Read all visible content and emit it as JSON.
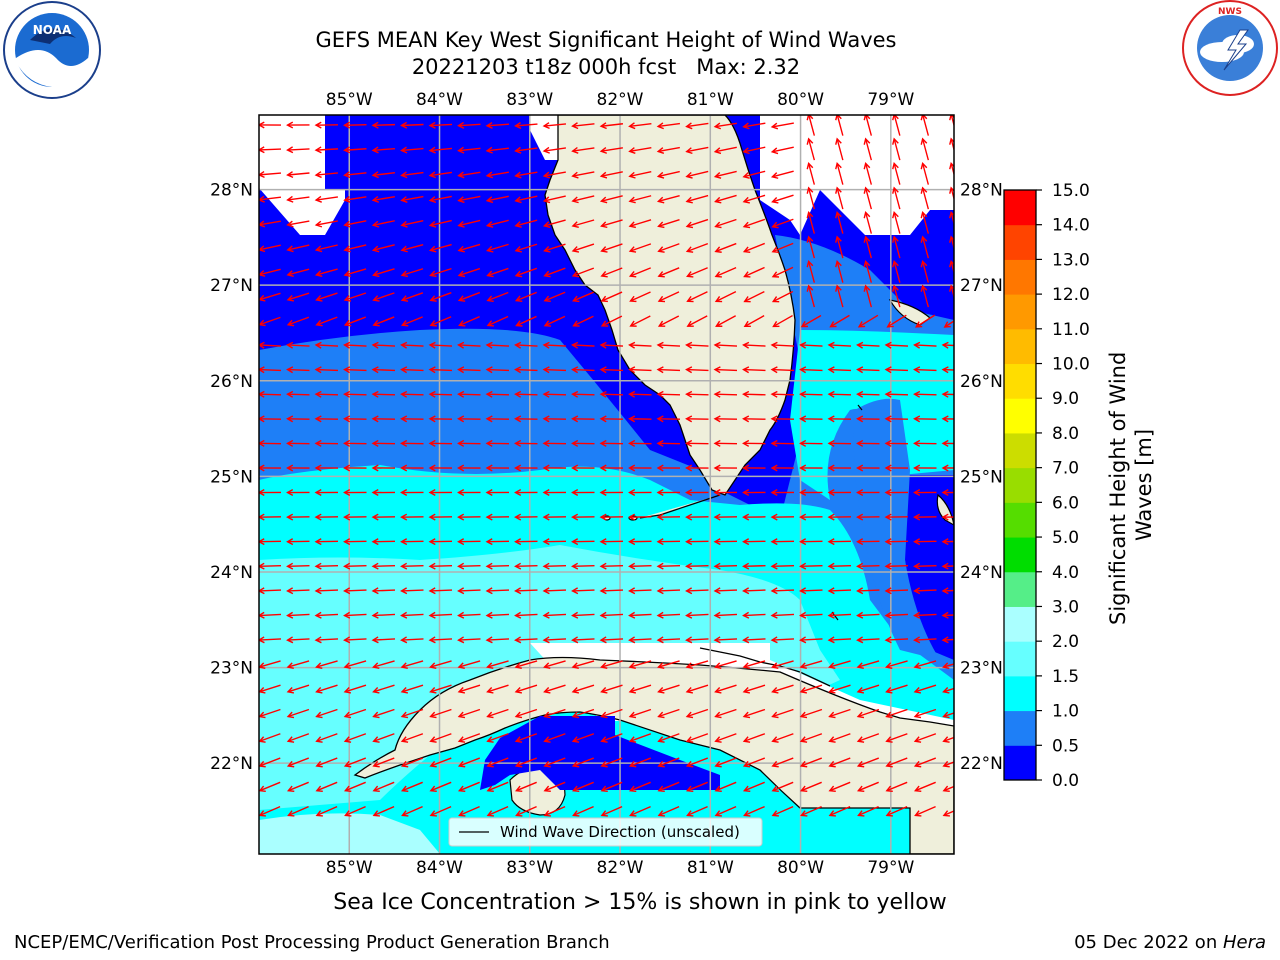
{
  "title": {
    "line1": "GEFS MEAN Key West Significant Height of Wind Waves",
    "line2": "20221203 t18z 000h fcst   Max: 2.32"
  },
  "logos": {
    "left": {
      "icon": "noaa-logo",
      "text": "NOAA",
      "ring": "NATIONAL OCEANIC AND ATMOSPHERIC ADMINISTRATION · U.S. DEPARTMENT OF COMMERCE"
    },
    "right": {
      "icon": "nws-logo",
      "ring": "NATIONAL WEATHER SERVICE"
    }
  },
  "axes": {
    "lon_labels": [
      "85°W",
      "84°W",
      "83°W",
      "82°W",
      "81°W",
      "80°W",
      "79°W"
    ],
    "lon_values": [
      -85,
      -84,
      -83,
      -82,
      -81,
      -80,
      -79
    ],
    "lat_labels": [
      "28°N",
      "27°N",
      "26°N",
      "25°N",
      "24°N",
      "23°N",
      "22°N"
    ],
    "lat_values": [
      28,
      27,
      26,
      25,
      24,
      23,
      22
    ],
    "lon_range": [
      -86,
      -78.3
    ],
    "lat_range": [
      21.05,
      28.78
    ],
    "grid": true
  },
  "legend": {
    "label": "Wind Wave Direction (unscaled)",
    "placement": "lower-center"
  },
  "colorbar": {
    "title": "Significant Height of Wind Waves [m]",
    "tick_labels": [
      "0.0",
      "0.5",
      "1.0",
      "1.5",
      "2.0",
      "3.0",
      "4.0",
      "5.0",
      "6.0",
      "7.0",
      "8.0",
      "9.0",
      "10.0",
      "11.0",
      "12.0",
      "13.0",
      "14.0",
      "15.0"
    ],
    "colors": [
      "#0000ff",
      "#1e7ff7",
      "#00ffff",
      "#66ffff",
      "#aaffff",
      "#55ee88",
      "#00dd00",
      "#55dd00",
      "#99dd00",
      "#ccdd00",
      "#ffff00",
      "#ffdd00",
      "#ffbb00",
      "#ff9900",
      "#ff7700",
      "#ff4400",
      "#ff0000"
    ]
  },
  "map_colors": {
    "land": "#efefdb",
    "band_0_0_5": "#0000ff",
    "band_0_5_1": "#1e7ff7",
    "band_1_1_5": "#00ffff",
    "band_1_5_2": "#66ffff",
    "band_2_3": "#aaffff",
    "arrows": "#ff0000",
    "grid": "#b0b0b0"
  },
  "caption": "Sea Ice Concentration > 15% is shown in pink to yellow",
  "footer": {
    "left": "NCEP/EMC/Verification Post Processing Product Generation Branch",
    "right_prefix": "05 Dec 2022 on ",
    "right_host": "Hera"
  }
}
